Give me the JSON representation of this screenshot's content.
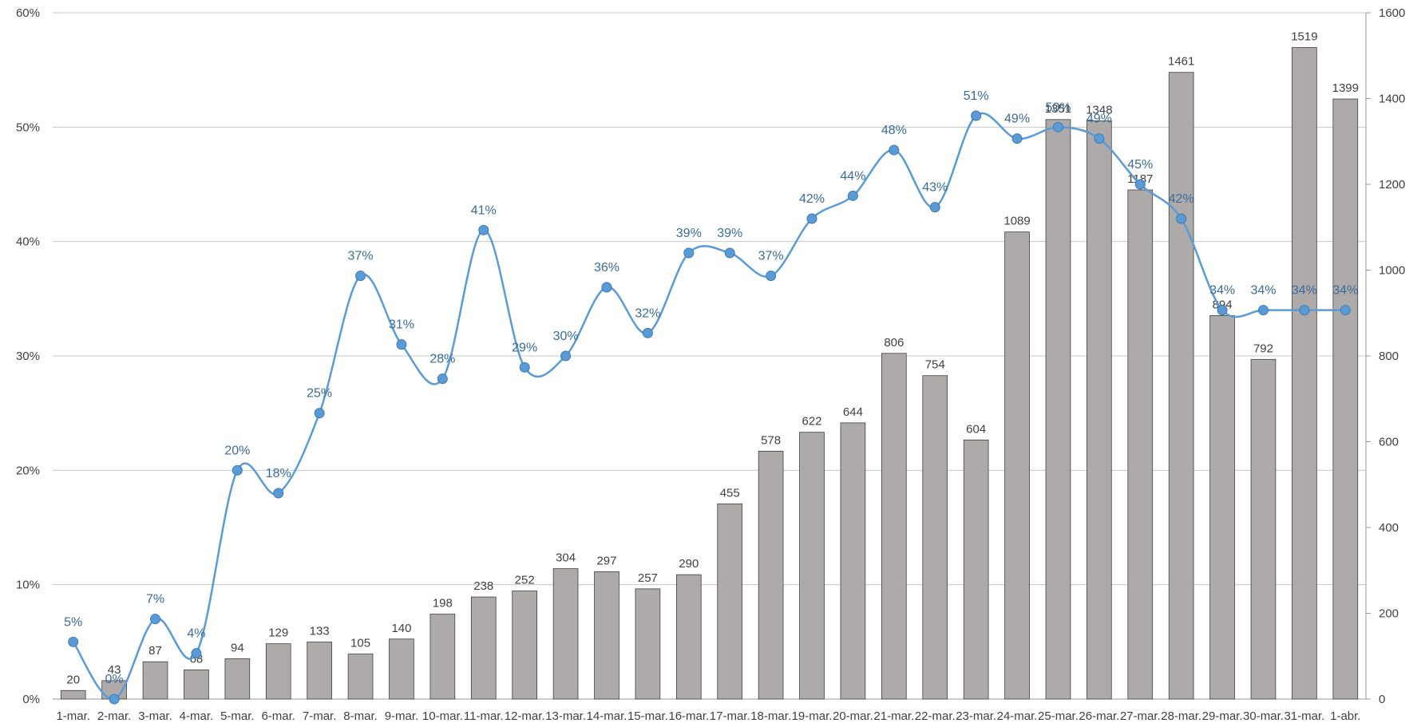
{
  "chart_data": {
    "type": "bar",
    "title": "",
    "categories": [
      "1-mar.",
      "2-mar.",
      "3-mar.",
      "4-mar.",
      "5-mar.",
      "6-mar.",
      "7-mar.",
      "8-mar.",
      "9-mar.",
      "10-mar.",
      "11-mar.",
      "12-mar.",
      "13-mar.",
      "14-mar.",
      "15-mar.",
      "16-mar.",
      "17-mar.",
      "18-mar.",
      "19-mar.",
      "20-mar.",
      "21-mar.",
      "22-mar.",
      "23-mar.",
      "24-mar.",
      "25-mar.",
      "26-mar.",
      "27-mar.",
      "28-mar.",
      "29-mar.",
      "30-mar.",
      "31-mar.",
      "1-abr."
    ],
    "series": [
      {
        "type": "bar",
        "axis": "right",
        "color": "#aeaaaa",
        "values": [
          20,
          43,
          87,
          68,
          94,
          129,
          133,
          105,
          140,
          198,
          238,
          252,
          304,
          297,
          257,
          290,
          455,
          578,
          622,
          644,
          806,
          754,
          604,
          1089,
          1351,
          1348,
          1187,
          1461,
          894,
          792,
          1519,
          1399
        ],
        "labels": [
          "20",
          "43",
          "87",
          "68",
          "94",
          "129",
          "133",
          "105",
          "140",
          "198",
          "238",
          "252",
          "304",
          "297",
          "257",
          "290",
          "455",
          "578",
          "622",
          "644",
          "806",
          "754",
          "604",
          "1089",
          "1351",
          "1348",
          "1187",
          "1461",
          "894",
          "792",
          "1519",
          "1399"
        ]
      },
      {
        "type": "line",
        "axis": "left",
        "color": "#5b9bd5",
        "values": [
          0.05,
          0.0,
          0.07,
          0.04,
          0.2,
          0.18,
          0.25,
          0.37,
          0.31,
          0.28,
          0.41,
          0.29,
          0.3,
          0.36,
          0.32,
          0.39,
          0.39,
          0.37,
          0.42,
          0.44,
          0.48,
          0.43,
          0.51,
          0.49,
          0.5,
          0.49,
          0.45,
          0.42,
          0.34,
          0.34,
          0.34,
          0.34
        ],
        "labels": [
          "5%",
          "0%",
          "7%",
          "4%",
          "20%",
          "18%",
          "25%",
          "37%",
          "31%",
          "28%",
          "41%",
          "29%",
          "30%",
          "36%",
          "32%",
          "39%",
          "39%",
          "37%",
          "42%",
          "44%",
          "48%",
          "43%",
          "51%",
          "49%",
          "50%",
          "49%",
          "45%",
          "42%",
          "34%",
          "34%",
          "34%",
          "34%"
        ]
      }
    ],
    "y_left": {
      "ylim": [
        0,
        0.6
      ],
      "ticks": [
        0,
        0.1,
        0.2,
        0.3,
        0.4,
        0.5,
        0.6
      ],
      "tick_labels": [
        "0%",
        "10%",
        "20%",
        "30%",
        "40%",
        "50%",
        "60%"
      ]
    },
    "y_right": {
      "ylim": [
        0,
        1600
      ],
      "ticks": [
        0,
        200,
        400,
        600,
        800,
        1000,
        1200,
        1400,
        1600
      ],
      "tick_labels": [
        "0",
        "200",
        "400",
        "600",
        "800",
        "1000",
        "1200",
        "1400",
        "1600"
      ]
    },
    "grid": true,
    "legend": "none"
  }
}
